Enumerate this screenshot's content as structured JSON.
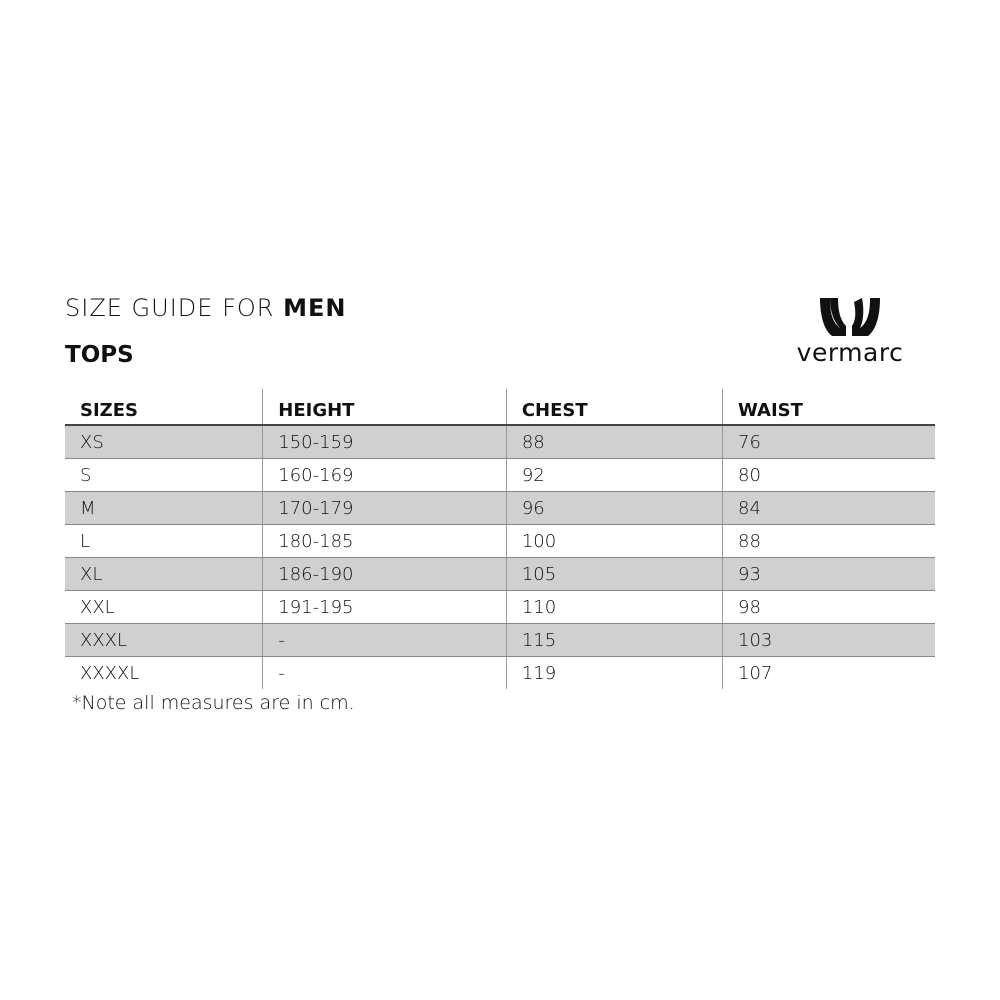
{
  "header": {
    "title_prefix": "SIZE GUIDE FOR ",
    "title_bold": "MEN",
    "subtitle": "TOPS"
  },
  "logo": {
    "text": "vermarc"
  },
  "table": {
    "columns": [
      "SIZES",
      "HEIGHT",
      "CHEST",
      "WAIST"
    ],
    "rows": [
      [
        "XS",
        "150-159",
        "88",
        "76"
      ],
      [
        "S",
        "160-169",
        "92",
        "80"
      ],
      [
        "M",
        "170-179",
        "96",
        "84"
      ],
      [
        "L",
        "180-185",
        "100",
        "88"
      ],
      [
        "XL",
        "186-190",
        "105",
        "93"
      ],
      [
        "XXL",
        "191-195",
        "110",
        "98"
      ],
      [
        "XXXL",
        "-",
        "115",
        "103"
      ],
      [
        "XXXXL",
        "-",
        "119",
        "107"
      ]
    ]
  },
  "note": "*Note all measures are in cm.",
  "colors": {
    "row_shade": "#d0d0d0",
    "text": "#111111"
  }
}
